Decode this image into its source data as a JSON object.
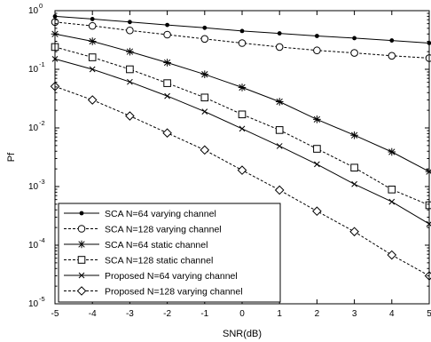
{
  "chart_data": {
    "type": "line",
    "xlabel": "SNR(dB)",
    "ylabel": "Pf",
    "yscale": "log",
    "xlim": [
      -5,
      5
    ],
    "ylim": [
      1e-05,
      1
    ],
    "grid": false,
    "legend_placement": "bottom-left",
    "x": [
      -5,
      -4,
      -3,
      -2,
      -1,
      0,
      1,
      2,
      3,
      4,
      5
    ],
    "x_tick_labels": [
      "-5",
      "-4",
      "-3",
      "-2",
      "-1",
      "0",
      "1",
      "2",
      "3",
      "4",
      "5"
    ],
    "y_ticks": [
      {
        "value": 1,
        "base": "10",
        "exp": "0"
      },
      {
        "value": 0.1,
        "base": "10",
        "exp": "-1"
      },
      {
        "value": 0.01,
        "base": "10",
        "exp": "-2"
      },
      {
        "value": 0.001,
        "base": "10",
        "exp": "-3"
      },
      {
        "value": 0.0001,
        "base": "10",
        "exp": "-4"
      },
      {
        "value": 1e-05,
        "base": "10",
        "exp": "-5"
      }
    ],
    "series": [
      {
        "name": "SCA    N=64    varying channel",
        "marker": "dot",
        "dashed": false,
        "values": [
          0.8,
          0.72,
          0.64,
          0.57,
          0.51,
          0.45,
          0.41,
          0.37,
          0.34,
          0.31,
          0.28
        ]
      },
      {
        "name": "SCA    N=128  varying channel",
        "marker": "circle",
        "dashed": true,
        "values": [
          0.64,
          0.55,
          0.46,
          0.39,
          0.33,
          0.28,
          0.24,
          0.21,
          0.19,
          0.17,
          0.155
        ]
      },
      {
        "name": "SCA    N=64    static channel",
        "marker": "asterisk",
        "dashed": false,
        "values": [
          0.4,
          0.3,
          0.2,
          0.13,
          0.082,
          0.049,
          0.028,
          0.014,
          0.0075,
          0.0039,
          0.0018
        ]
      },
      {
        "name": "SCA    N=128  static channel",
        "marker": "square",
        "dashed": true,
        "values": [
          0.24,
          0.16,
          0.1,
          0.058,
          0.033,
          0.017,
          0.0092,
          0.0044,
          0.0021,
          0.00089,
          0.00048
        ]
      },
      {
        "name": "Proposed N=64  varying channel",
        "marker": "x",
        "dashed": false,
        "values": [
          0.15,
          0.1,
          0.061,
          0.035,
          0.019,
          0.0097,
          0.0049,
          0.0024,
          0.0011,
          0.00055,
          0.00023
        ]
      },
      {
        "name": "Proposed N=128 varying channel",
        "marker": "diamond",
        "dashed": true,
        "values": [
          0.051,
          0.03,
          0.016,
          0.0082,
          0.0042,
          0.0019,
          0.00087,
          0.00038,
          0.00017,
          6.8e-05,
          3e-05
        ]
      }
    ]
  }
}
